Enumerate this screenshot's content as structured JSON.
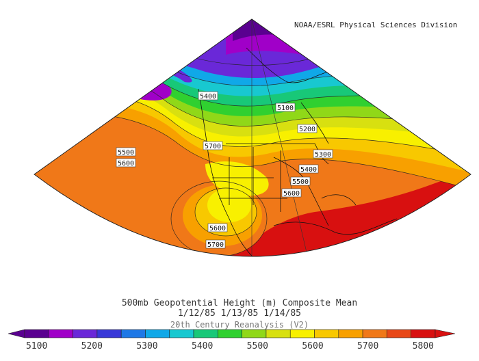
{
  "credit": "NOAA/ESRL Physical Sciences Division",
  "title_line1": "500mb Geopotential Height (m) Composite Mean",
  "title_line2": "1/12/85 1/13/85 1/14/85",
  "title_line3": "20th Century Reanalysis (V2)",
  "contour_labels": [
    "5400",
    "5100",
    "5200",
    "5300",
    "5400",
    "5500",
    "5600",
    "5500",
    "5600",
    "5700",
    "5600",
    "5700"
  ],
  "colorbar": {
    "ticks": [
      "5100",
      "5200",
      "5300",
      "5400",
      "5500",
      "5600",
      "5700",
      "5800"
    ],
    "colors": [
      "#5a0090",
      "#a000c8",
      "#6a28d8",
      "#3838d8",
      "#1e78e6",
      "#10a8e8",
      "#18c8d0",
      "#18c878",
      "#30d030",
      "#90d818",
      "#d8e010",
      "#f8f000",
      "#f8c800",
      "#f8a000",
      "#f07818",
      "#e84818",
      "#d81010"
    ]
  },
  "levels": [
    5100,
    5150,
    5200,
    5250,
    5300,
    5350,
    5400,
    5450,
    5500,
    5550,
    5600,
    5650,
    5700,
    5750,
    5800
  ]
}
